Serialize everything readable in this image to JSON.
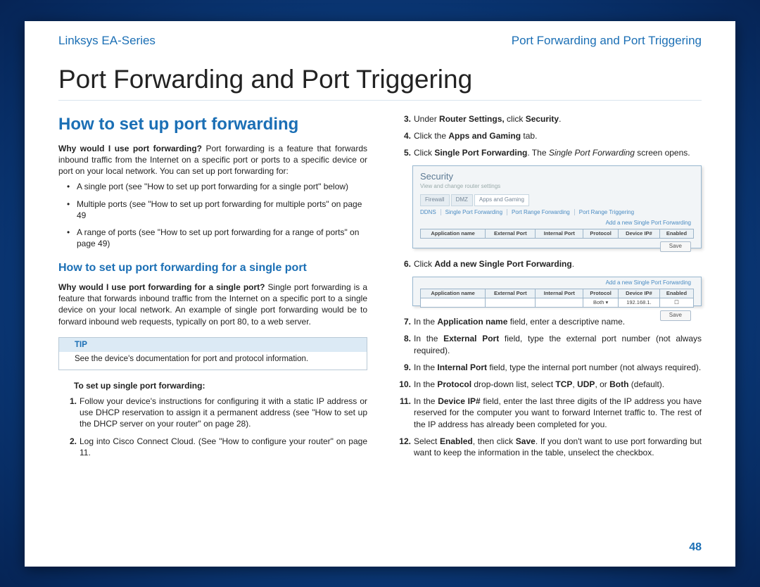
{
  "header": {
    "left": "Linksys EA-Series",
    "right": "Port Forwarding and Port Triggering"
  },
  "title": "Port Forwarding and Port Triggering",
  "left": {
    "h1": "How to set up port forwarding",
    "intro_bold": "Why would I use port forwarding?",
    "intro_rest": " Port forwarding is a feature that forwards inbound traffic from the Internet on a specific port or ports to a specific device or port on your local network. You can set up port forwarding for:",
    "bullets": [
      "A single port (see \"How to set up port forwarding for a single port\" below)",
      "Multiple ports (see \"How to set up port forwarding for multiple ports\" on page 49",
      "A range of ports (see \"How to set up port forwarding for a range of ports\" on page 49)"
    ],
    "h2": "How to set up port forwarding for a single port",
    "single_bold": "Why would I use port forwarding for a single port?",
    "single_rest": " Single port forwarding is a feature that forwards inbound traffic from the Internet on a specific port to a single device on your local network. An example of single port forwarding would be to forward inbound web requests, typically on port 80, to a web server.",
    "tip_label": "TIP",
    "tip_body": "See the device's documentation for port and protocol information.",
    "subhead": "To set up single port forwarding:",
    "steps": [
      "Follow your device's instructions for configuring it with a static IP address or use DHCP reservation to assign it a permanent address (see \"How to set up the DHCP server on your router\" on page 28).",
      "Log into Cisco Connect Cloud. (See \"How to configure your router\" on page 11."
    ]
  },
  "right": {
    "start": 3,
    "steps_a": [
      {
        "pre": "Under ",
        "b1": "Router Settings,",
        "mid": " click ",
        "b2": "Security",
        "post": "."
      },
      {
        "pre": "Click the ",
        "b1": "Apps and Gaming",
        "mid": " tab.",
        "b2": "",
        "post": ""
      },
      {
        "pre": "Click ",
        "b1": "Single Port Forwarding",
        "mid": ". The ",
        "i": "Single Port Forwarding",
        "post": " screen opens."
      }
    ],
    "step6": {
      "pre": "Click ",
      "b": "Add a new Single Port Forwarding",
      "post": "."
    },
    "steps_b": [
      "In the <b>Application name</b> field, enter a descriptive name.",
      "In the <b>External Port</b> field, type the external port number (not always required).",
      "In the <b>Internal Port</b> field, type the internal port number (not always required).",
      "In the <b>Protocol</b> drop-down list, select <b>TCP</b>, <b>UDP</b>, or <b>Both</b> (default).",
      "In the <b>Device IP#</b> field, enter the last three digits of the IP address you have reserved for the computer you want to forward Internet traffic to. The rest of the IP address has already been completed for you.",
      "Select <b>Enabled</b>, then click <b>Save</b>. If you don't want to use port forwarding but want to keep the information in the table, unselect the checkbox."
    ]
  },
  "fig1": {
    "title": "Security",
    "subtitle": "View and change router settings",
    "tabs": [
      "Firewall",
      "DMZ",
      "Apps and Gaming"
    ],
    "active_tab": 2,
    "links": [
      "DDNS",
      "Single Port Forwarding",
      "Port Range Forwarding",
      "Port Range Triggering"
    ],
    "add_link": "Add a new Single Port Forwarding",
    "cols": [
      "Application name",
      "External Port",
      "Internal Port",
      "Protocol",
      "Device IP#",
      "Enabled"
    ],
    "save": "Save"
  },
  "fig2": {
    "add_link": "Add a new Single Port Forwarding",
    "cols": [
      "Application name",
      "External Port",
      "Internal Port",
      "Protocol",
      "Device IP#",
      "Enabled"
    ],
    "row": [
      "",
      "",
      "",
      "Both ▾",
      "192.168.1.",
      "☐"
    ],
    "save": "Save"
  },
  "page_number": "48"
}
